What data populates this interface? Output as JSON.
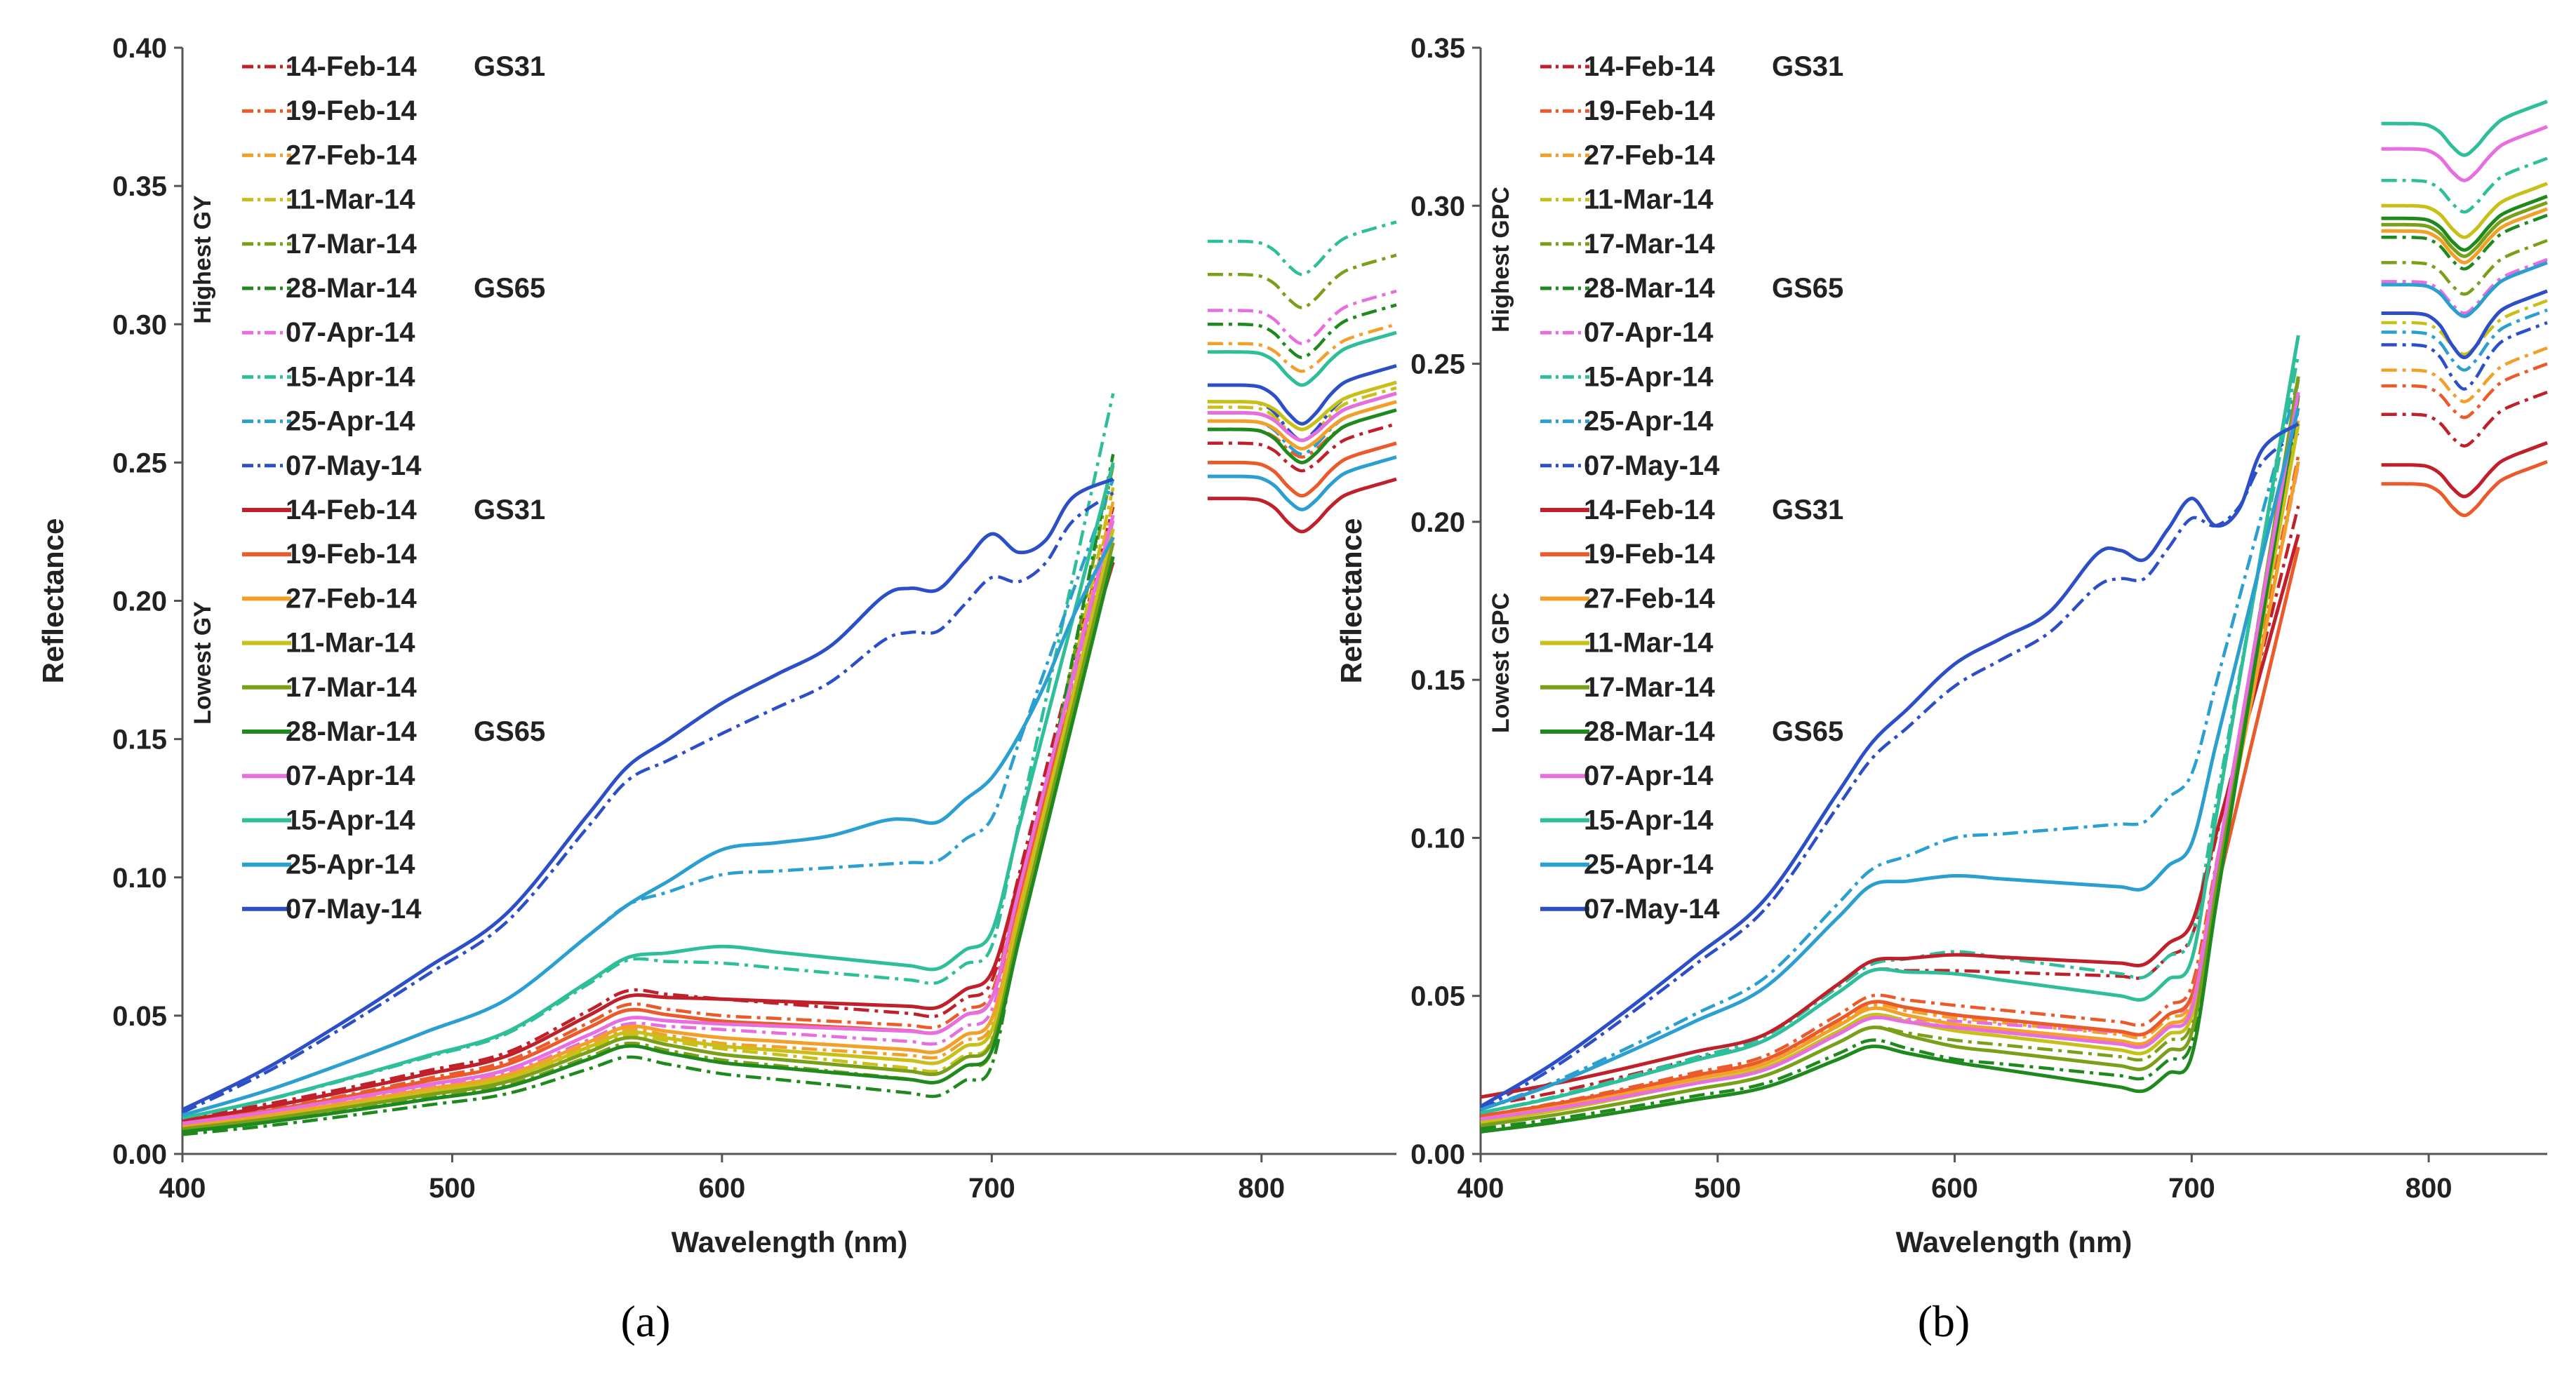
{
  "series_styles": [
    {
      "name": "14-Feb-14",
      "color": "#c0202a"
    },
    {
      "name": "19-Feb-14",
      "color": "#ea5a2a"
    },
    {
      "name": "27-Feb-14",
      "color": "#f2a02a"
    },
    {
      "name": "11-Mar-14",
      "color": "#c8c018"
    },
    {
      "name": "17-Mar-14",
      "color": "#7aa01a"
    },
    {
      "name": "28-Mar-14",
      "color": "#1e8a1e"
    },
    {
      "name": "07-Apr-14",
      "color": "#e86ee0"
    },
    {
      "name": "15-Apr-14",
      "color": "#2ebf9a"
    },
    {
      "name": "25-Apr-14",
      "color": "#2a9fd0"
    },
    {
      "name": "07-May-14",
      "color": "#2c4fc8"
    }
  ],
  "chart_data": [
    {
      "panel": "(a)",
      "type": "line",
      "xlabel": "Wavelength (nm)",
      "ylabel": "Reflectance",
      "xlim": [
        400,
        850
      ],
      "ylim": [
        0,
        0.4
      ],
      "xticks": [
        "400",
        "500",
        "600",
        "700",
        "800"
      ],
      "xtick_values": [
        400,
        500,
        600,
        700,
        800
      ],
      "yticks": [
        "0.00",
        "0.05",
        "0.10",
        "0.15",
        "0.20",
        "0.25",
        "0.30",
        "0.35",
        "0.40"
      ],
      "ytick_values": [
        0,
        0.05,
        0.1,
        0.15,
        0.2,
        0.25,
        0.3,
        0.35,
        0.4
      ],
      "group_labels": {
        "dashed": "Highest GY",
        "solid": "Lowest GY"
      },
      "legend": [
        {
          "label": "14-Feb-14",
          "note": "GS31",
          "style": "dashed"
        },
        {
          "label": "19-Feb-14",
          "note": "",
          "style": "dashed"
        },
        {
          "label": "27-Feb-14",
          "note": "",
          "style": "dashed"
        },
        {
          "label": "11-Mar-14",
          "note": "",
          "style": "dashed"
        },
        {
          "label": "17-Mar-14",
          "note": "",
          "style": "dashed"
        },
        {
          "label": "28-Mar-14",
          "note": "GS65",
          "style": "dashed"
        },
        {
          "label": "07-Apr-14",
          "note": "",
          "style": "dashed"
        },
        {
          "label": "15-Apr-14",
          "note": "",
          "style": "dashed"
        },
        {
          "label": "25-Apr-14",
          "note": "",
          "style": "dashed"
        },
        {
          "label": "07-May-14",
          "note": "",
          "style": "dashed"
        },
        {
          "label": "14-Feb-14",
          "note": "GS31",
          "style": "solid"
        },
        {
          "label": "19-Feb-14",
          "note": "",
          "style": "solid"
        },
        {
          "label": "27-Feb-14",
          "note": "",
          "style": "solid"
        },
        {
          "label": "11-Mar-14",
          "note": "",
          "style": "solid"
        },
        {
          "label": "17-Mar-14",
          "note": "",
          "style": "solid"
        },
        {
          "label": "28-Mar-14",
          "note": "GS65",
          "style": "solid"
        },
        {
          "label": "07-Apr-14",
          "note": "",
          "style": "solid"
        },
        {
          "label": "15-Apr-14",
          "note": "",
          "style": "solid"
        },
        {
          "label": "25-Apr-14",
          "note": "",
          "style": "solid"
        },
        {
          "label": "07-May-14",
          "note": "",
          "style": "solid"
        }
      ],
      "shape_x": [
        400,
        430,
        460,
        490,
        520,
        550,
        565,
        580,
        600,
        620,
        640,
        660,
        670,
        680,
        690,
        700,
        710,
        720,
        730,
        745
      ],
      "series": [
        {
          "name": "14-Feb-14",
          "style": "dashed",
          "base": 0.013,
          "peak": 0.059,
          "plateau": 0.056,
          "red": 0.05,
          "nir_end": 0.234,
          "hump": 0,
          "nir_level": 0.257,
          "nir_dip": 0.01
        },
        {
          "name": "19-Feb-14",
          "style": "dashed",
          "base": 0.011,
          "peak": 0.054,
          "plateau": 0.05,
          "red": 0.046,
          "nir_end": 0.228,
          "hump": 0,
          "nir_level": 0.262,
          "nir_dip": 0.01
        },
        {
          "name": "27-Feb-14",
          "style": "dashed",
          "base": 0.01,
          "peak": 0.045,
          "plateau": 0.04,
          "red": 0.035,
          "nir_end": 0.236,
          "hump": 0,
          "nir_level": 0.293,
          "nir_dip": 0.01
        },
        {
          "name": "11-Mar-14",
          "style": "dashed",
          "base": 0.009,
          "peak": 0.043,
          "plateau": 0.038,
          "red": 0.03,
          "nir_end": 0.241,
          "hump": 0,
          "nir_level": 0.27,
          "nir_dip": 0.012
        },
        {
          "name": "17-Mar-14",
          "style": "dashed",
          "base": 0.008,
          "peak": 0.04,
          "plateau": 0.034,
          "red": 0.026,
          "nir_end": 0.249,
          "hump": 0,
          "nir_level": 0.318,
          "nir_dip": 0.012
        },
        {
          "name": "28-Mar-14",
          "style": "dashed",
          "base": 0.007,
          "peak": 0.035,
          "plateau": 0.029,
          "red": 0.021,
          "nir_end": 0.253,
          "hump": 0,
          "nir_level": 0.3,
          "nir_dip": 0.012
        },
        {
          "name": "07-Apr-14",
          "style": "dashed",
          "base": 0.01,
          "peak": 0.047,
          "plateau": 0.045,
          "red": 0.04,
          "nir_end": 0.229,
          "hump": 0,
          "nir_level": 0.305,
          "nir_dip": 0.012
        },
        {
          "name": "15-Apr-14",
          "style": "dashed",
          "base": 0.013,
          "peak": 0.07,
          "plateau": 0.069,
          "red": 0.062,
          "nir_end": 0.275,
          "hump": 0,
          "nir_level": 0.33,
          "nir_dip": 0.012
        },
        {
          "name": "25-Apr-14",
          "style": "dashed",
          "base": 0.014,
          "peak": 0.09,
          "plateau": 0.101,
          "red": 0.106,
          "nir_end": 0.244,
          "hump": 0,
          "nir_level": 0.265,
          "nir_dip": 0.012
        },
        {
          "name": "07-May-14",
          "style": "dashed",
          "base": 0.015,
          "peak": 0.135,
          "plateau": 0.152,
          "red": 0.189,
          "nir_end": 0.239,
          "hump": 0.006,
          "nir_level": 0.272,
          "nir_dip": 0.014
        },
        {
          "name": "14-Feb-14",
          "style": "solid",
          "base": 0.012,
          "peak": 0.057,
          "plateau": 0.056,
          "red": 0.053,
          "nir_end": 0.214,
          "hump": 0,
          "nir_level": 0.237,
          "nir_dip": 0.012
        },
        {
          "name": "19-Feb-14",
          "style": "solid",
          "base": 0.011,
          "peak": 0.052,
          "plateau": 0.048,
          "red": 0.044,
          "nir_end": 0.221,
          "hump": 0,
          "nir_level": 0.25,
          "nir_dip": 0.012
        },
        {
          "name": "27-Feb-14",
          "style": "solid",
          "base": 0.01,
          "peak": 0.046,
          "plateau": 0.042,
          "red": 0.037,
          "nir_end": 0.223,
          "hump": 0,
          "nir_level": 0.265,
          "nir_dip": 0.01
        },
        {
          "name": "11-Mar-14",
          "style": "solid",
          "base": 0.009,
          "peak": 0.044,
          "plateau": 0.039,
          "red": 0.033,
          "nir_end": 0.226,
          "hump": 0,
          "nir_level": 0.272,
          "nir_dip": 0.01
        },
        {
          "name": "17-Mar-14",
          "style": "solid",
          "base": 0.009,
          "peak": 0.042,
          "plateau": 0.036,
          "red": 0.029,
          "nir_end": 0.221,
          "hump": 0,
          "nir_level": 0.268,
          "nir_dip": 0.01
        },
        {
          "name": "28-Mar-14",
          "style": "solid",
          "base": 0.008,
          "peak": 0.039,
          "plateau": 0.033,
          "red": 0.026,
          "nir_end": 0.216,
          "hump": 0,
          "nir_level": 0.262,
          "nir_dip": 0.012
        },
        {
          "name": "07-Apr-14",
          "style": "solid",
          "base": 0.011,
          "peak": 0.049,
          "plateau": 0.047,
          "red": 0.044,
          "nir_end": 0.231,
          "hump": 0,
          "nir_level": 0.268,
          "nir_dip": 0.01
        },
        {
          "name": "15-Apr-14",
          "style": "solid",
          "base": 0.013,
          "peak": 0.071,
          "plateau": 0.075,
          "red": 0.067,
          "nir_end": 0.25,
          "hump": 0,
          "nir_level": 0.29,
          "nir_dip": 0.012
        },
        {
          "name": "25-Apr-14",
          "style": "solid",
          "base": 0.014,
          "peak": 0.09,
          "plateau": 0.11,
          "red": 0.12,
          "nir_end": 0.223,
          "hump": 0.003,
          "nir_level": 0.245,
          "nir_dip": 0.012
        },
        {
          "name": "07-May-14",
          "style": "solid",
          "base": 0.016,
          "peak": 0.14,
          "plateau": 0.163,
          "red": 0.204,
          "nir_end": 0.244,
          "hump": 0.008,
          "nir_level": 0.278,
          "nir_dip": 0.014
        }
      ]
    },
    {
      "panel": "(b)",
      "type": "line",
      "xlabel": "Wavelength (nm)",
      "ylabel": "Reflectance",
      "xlim": [
        400,
        850
      ],
      "ylim": [
        0,
        0.35
      ],
      "xticks": [
        "400",
        "500",
        "600",
        "700",
        "800"
      ],
      "xtick_values": [
        400,
        500,
        600,
        700,
        800
      ],
      "yticks": [
        "0.00",
        "0.05",
        "0.10",
        "0.15",
        "0.20",
        "0.25",
        "0.30",
        "0.35"
      ],
      "ytick_values": [
        0,
        0.05,
        0.1,
        0.15,
        0.2,
        0.25,
        0.3,
        0.35
      ],
      "group_labels": {
        "dashed": "Highest GPC",
        "solid": "Lowest GPC"
      },
      "legend": [
        {
          "label": "14-Feb-14",
          "note": "GS31",
          "style": "dashed"
        },
        {
          "label": "19-Feb-14",
          "note": "",
          "style": "dashed"
        },
        {
          "label": "27-Feb-14",
          "note": "",
          "style": "dashed"
        },
        {
          "label": "11-Mar-14",
          "note": "",
          "style": "dashed"
        },
        {
          "label": "17-Mar-14",
          "note": "",
          "style": "dashed"
        },
        {
          "label": "28-Mar-14",
          "note": "GS65",
          "style": "dashed"
        },
        {
          "label": "07-Apr-14",
          "note": "",
          "style": "dashed"
        },
        {
          "label": "15-Apr-14",
          "note": "",
          "style": "dashed"
        },
        {
          "label": "25-Apr-14",
          "note": "",
          "style": "dashed"
        },
        {
          "label": "07-May-14",
          "note": "",
          "style": "dashed"
        },
        {
          "label": "14-Feb-14",
          "note": "GS31",
          "style": "solid"
        },
        {
          "label": "19-Feb-14",
          "note": "",
          "style": "solid"
        },
        {
          "label": "27-Feb-14",
          "note": "",
          "style": "solid"
        },
        {
          "label": "11-Mar-14",
          "note": "",
          "style": "solid"
        },
        {
          "label": "17-Mar-14",
          "note": "",
          "style": "solid"
        },
        {
          "label": "28-Mar-14",
          "note": "GS65",
          "style": "solid"
        },
        {
          "label": "07-Apr-14",
          "note": "",
          "style": "solid"
        },
        {
          "label": "15-Apr-14",
          "note": "",
          "style": "solid"
        },
        {
          "label": "25-Apr-14",
          "note": "",
          "style": "solid"
        },
        {
          "label": "07-May-14",
          "note": "",
          "style": "solid"
        }
      ],
      "shape_x": [
        400,
        430,
        460,
        490,
        520,
        550,
        565,
        580,
        600,
        620,
        640,
        660,
        670,
        680,
        690,
        700,
        710,
        720,
        730,
        745
      ],
      "series": [
        {
          "name": "14-Feb-14",
          "style": "dashed",
          "base": 0.015,
          "peak": 0.058,
          "plateau": 0.058,
          "red": 0.056,
          "nir_end": 0.205,
          "hump": 0,
          "nir_level": 0.234,
          "nir_dip": 0.01
        },
        {
          "name": "19-Feb-14",
          "style": "dashed",
          "base": 0.012,
          "peak": 0.05,
          "plateau": 0.047,
          "red": 0.041,
          "nir_end": 0.221,
          "hump": 0,
          "nir_level": 0.243,
          "nir_dip": 0.01
        },
        {
          "name": "27-Feb-14",
          "style": "dashed",
          "base": 0.011,
          "peak": 0.047,
          "plateau": 0.043,
          "red": 0.037,
          "nir_end": 0.232,
          "hump": 0,
          "nir_level": 0.248,
          "nir_dip": 0.01
        },
        {
          "name": "11-Mar-14",
          "style": "dashed",
          "base": 0.01,
          "peak": 0.044,
          "plateau": 0.04,
          "red": 0.034,
          "nir_end": 0.239,
          "hump": 0,
          "nir_level": 0.263,
          "nir_dip": 0.01
        },
        {
          "name": "17-Mar-14",
          "style": "dashed",
          "base": 0.009,
          "peak": 0.04,
          "plateau": 0.036,
          "red": 0.03,
          "nir_end": 0.245,
          "hump": 0,
          "nir_level": 0.282,
          "nir_dip": 0.01
        },
        {
          "name": "28-Mar-14",
          "style": "dashed",
          "base": 0.008,
          "peak": 0.036,
          "plateau": 0.03,
          "red": 0.024,
          "nir_end": 0.236,
          "hump": 0,
          "nir_level": 0.29,
          "nir_dip": 0.01
        },
        {
          "name": "07-Apr-14",
          "style": "dashed",
          "base": 0.011,
          "peak": 0.043,
          "plateau": 0.042,
          "red": 0.038,
          "nir_end": 0.218,
          "hump": 0,
          "nir_level": 0.276,
          "nir_dip": 0.01
        },
        {
          "name": "15-Apr-14",
          "style": "dashed",
          "base": 0.013,
          "peak": 0.06,
          "plateau": 0.064,
          "red": 0.056,
          "nir_end": 0.253,
          "hump": 0,
          "nir_level": 0.308,
          "nir_dip": 0.01
        },
        {
          "name": "25-Apr-14",
          "style": "dashed",
          "base": 0.014,
          "peak": 0.09,
          "plateau": 0.1,
          "red": 0.105,
          "nir_end": 0.245,
          "hump": 0,
          "nir_level": 0.26,
          "nir_dip": 0.012
        },
        {
          "name": "07-May-14",
          "style": "dashed",
          "base": 0.014,
          "peak": 0.125,
          "plateau": 0.148,
          "red": 0.182,
          "nir_end": 0.228,
          "hump": 0.006,
          "nir_level": 0.256,
          "nir_dip": 0.014
        },
        {
          "name": "14-Feb-14",
          "style": "solid",
          "base": 0.018,
          "peak": 0.061,
          "plateau": 0.063,
          "red": 0.06,
          "nir_end": 0.196,
          "hump": 0,
          "nir_level": 0.218,
          "nir_dip": 0.01
        },
        {
          "name": "19-Feb-14",
          "style": "solid",
          "base": 0.012,
          "peak": 0.048,
          "plateau": 0.044,
          "red": 0.038,
          "nir_end": 0.192,
          "hump": 0,
          "nir_level": 0.212,
          "nir_dip": 0.01
        },
        {
          "name": "27-Feb-14",
          "style": "solid",
          "base": 0.011,
          "peak": 0.046,
          "plateau": 0.041,
          "red": 0.035,
          "nir_end": 0.219,
          "hump": 0,
          "nir_level": 0.292,
          "nir_dip": 0.01
        },
        {
          "name": "11-Mar-14",
          "style": "solid",
          "base": 0.01,
          "peak": 0.044,
          "plateau": 0.039,
          "red": 0.032,
          "nir_end": 0.231,
          "hump": 0,
          "nir_level": 0.3,
          "nir_dip": 0.01
        },
        {
          "name": "17-Mar-14",
          "style": "solid",
          "base": 0.009,
          "peak": 0.04,
          "plateau": 0.034,
          "red": 0.027,
          "nir_end": 0.246,
          "hump": 0,
          "nir_level": 0.294,
          "nir_dip": 0.01
        },
        {
          "name": "28-Mar-14",
          "style": "solid",
          "base": 0.007,
          "peak": 0.034,
          "plateau": 0.029,
          "red": 0.02,
          "nir_end": 0.24,
          "hump": 0,
          "nir_level": 0.296,
          "nir_dip": 0.01
        },
        {
          "name": "07-Apr-14",
          "style": "solid",
          "base": 0.011,
          "peak": 0.043,
          "plateau": 0.04,
          "red": 0.034,
          "nir_end": 0.241,
          "hump": 0,
          "nir_level": 0.318,
          "nir_dip": 0.01
        },
        {
          "name": "15-Apr-14",
          "style": "solid",
          "base": 0.013,
          "peak": 0.058,
          "plateau": 0.057,
          "red": 0.049,
          "nir_end": 0.259,
          "hump": 0,
          "nir_level": 0.326,
          "nir_dip": 0.01
        },
        {
          "name": "25-Apr-14",
          "style": "solid",
          "base": 0.014,
          "peak": 0.085,
          "plateau": 0.088,
          "red": 0.084,
          "nir_end": 0.236,
          "hump": 0,
          "nir_level": 0.275,
          "nir_dip": 0.01
        },
        {
          "name": "07-May-14",
          "style": "solid",
          "base": 0.015,
          "peak": 0.13,
          "plateau": 0.155,
          "red": 0.188,
          "nir_end": 0.231,
          "hump": 0.01,
          "nir_level": 0.266,
          "nir_dip": 0.014
        }
      ]
    }
  ]
}
